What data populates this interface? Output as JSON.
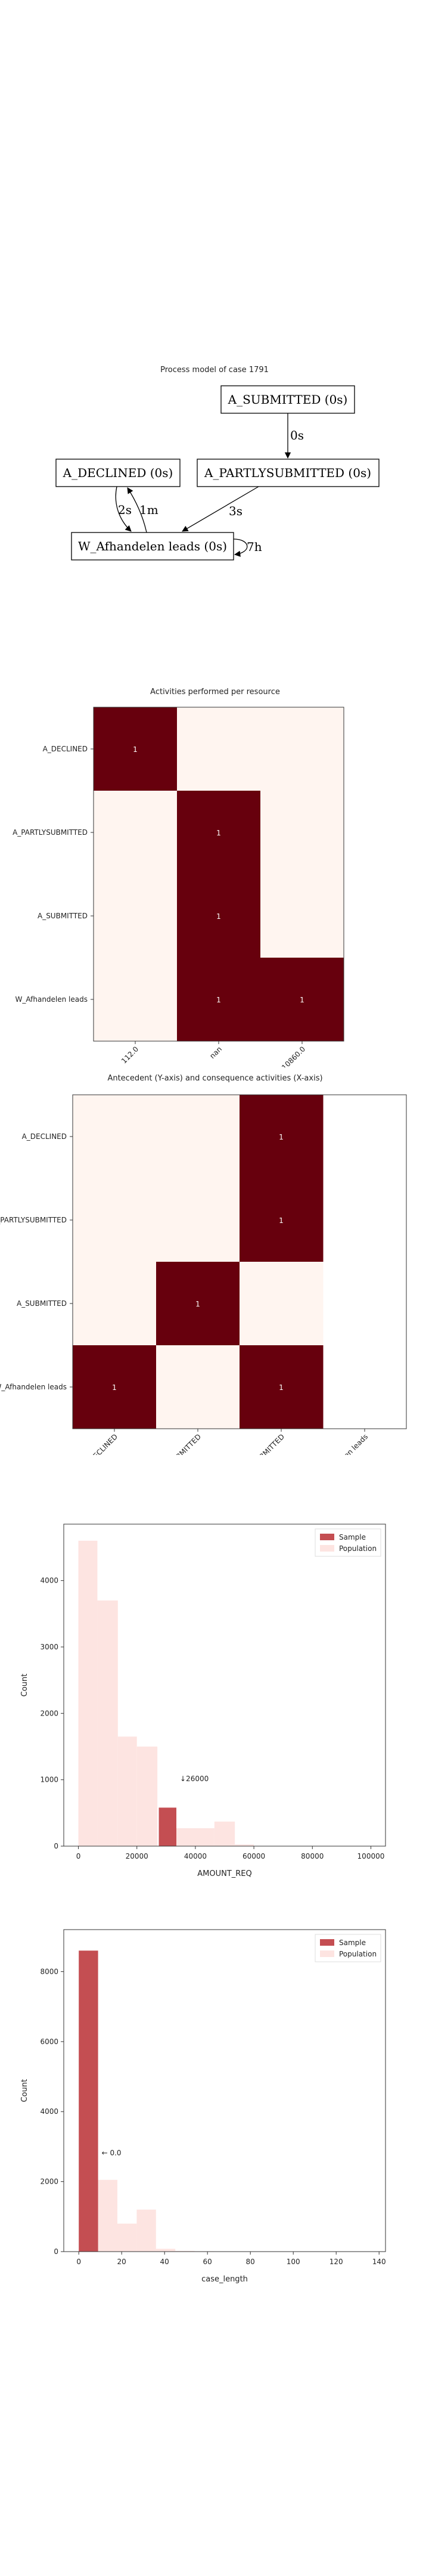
{
  "process_model": {
    "title": "Process model of case 1791",
    "nodes": [
      {
        "id": "submitted",
        "label": "A_SUBMITTED (0s)"
      },
      {
        "id": "declined",
        "label": "A_DECLINED (0s)"
      },
      {
        "id": "partly",
        "label": "A_PARTLYSUBMITTED (0s)"
      },
      {
        "id": "afhandelen",
        "label": "W_Afhandelen leads (0s)"
      }
    ],
    "edges": [
      {
        "from": "submitted",
        "to": "partly",
        "label": "0s"
      },
      {
        "from": "partly",
        "to": "afhandelen",
        "label": "3s"
      },
      {
        "from": "declined",
        "to": "afhandelen",
        "label": "2s"
      },
      {
        "from": "afhandelen",
        "to": "declined",
        "label": "1m"
      },
      {
        "from": "afhandelen",
        "to": "afhandelen",
        "label": "7h"
      }
    ]
  },
  "chart_data": [
    {
      "type": "heatmap",
      "title": "Activities performed per resource",
      "rows": [
        "A_DECLINED",
        "A_PARTLYSUBMITTED",
        "A_SUBMITTED",
        "W_Afhandelen leads"
      ],
      "cols": [
        "112.0",
        "nan",
        "10860.0"
      ],
      "values": [
        [
          1,
          0,
          0
        ],
        [
          0,
          1,
          0
        ],
        [
          0,
          1,
          0
        ],
        [
          0,
          1,
          1
        ]
      ],
      "colors": {
        "low": "#fff5f0",
        "high": "#67000d",
        "text": "#ffffff"
      }
    },
    {
      "type": "heatmap",
      "title": "Antecedent (Y-axis) and consequence activities (X-axis)",
      "rows": [
        "A_DECLINED",
        "A_PARTLYSUBMITTED",
        "A_SUBMITTED",
        "W_Afhandelen leads"
      ],
      "cols": [
        "A_DECLINED",
        "A_PARTLYSUBMITTED",
        "A_SUBMITTED",
        "W_Afhandelen leads"
      ],
      "values": [
        [
          0,
          0,
          1,
          null
        ],
        [
          0,
          0,
          1,
          null
        ],
        [
          0,
          1,
          0,
          null
        ],
        [
          1,
          0,
          1,
          null
        ]
      ],
      "colors": {
        "low": "#fff5f0",
        "high": "#67000d",
        "text": "#ffffff"
      }
    },
    {
      "type": "bar",
      "xlabel": "AMOUNT_REQ",
      "ylabel": "Count",
      "xlim": [
        -5000,
        105000
      ],
      "ylim": [
        0,
        4850
      ],
      "xticks": [
        "0",
        "20000",
        "40000",
        "60000",
        "80000",
        "100000"
      ],
      "yticks": [
        "0",
        "1000",
        "2000",
        "3000",
        "4000"
      ],
      "legend_position": "top-right",
      "series": [
        {
          "name": "Sample",
          "color": "#c44e52",
          "bins": [
            [
              27500,
              33500,
              580
            ]
          ]
        },
        {
          "name": "Population",
          "color": "#fde4e1",
          "bins": [
            [
              0,
              6500,
              4600
            ],
            [
              6500,
              13500,
              3700
            ],
            [
              13500,
              20000,
              1650
            ],
            [
              20000,
              27000,
              1500
            ],
            [
              33500,
              46500,
              270
            ],
            [
              46500,
              53500,
              370
            ],
            [
              53500,
              60000,
              25
            ]
          ]
        }
      ],
      "annotation": "↓26000"
    },
    {
      "type": "bar",
      "xlabel": "case_length",
      "ylabel": "Count",
      "xlim": [
        -7,
        143
      ],
      "ylim": [
        0,
        9200
      ],
      "xticks": [
        "0",
        "20",
        "40",
        "60",
        "80",
        "100",
        "120",
        "140"
      ],
      "yticks": [
        "0",
        "2000",
        "4000",
        "6000",
        "8000"
      ],
      "legend_position": "top-right",
      "series": [
        {
          "name": "Sample",
          "color": "#c44e52",
          "bins": [
            [
              0,
              9,
              8600
            ]
          ]
        },
        {
          "name": "Population",
          "color": "#fde4e1",
          "bins": [
            [
              9,
              18,
              2050
            ],
            [
              18,
              27,
              800
            ],
            [
              27,
              36,
              1200
            ],
            [
              36,
              45,
              80
            ],
            [
              45,
              54,
              20
            ],
            [
              54,
              63,
              10
            ]
          ]
        }
      ],
      "annotation": "← 0.0"
    }
  ]
}
